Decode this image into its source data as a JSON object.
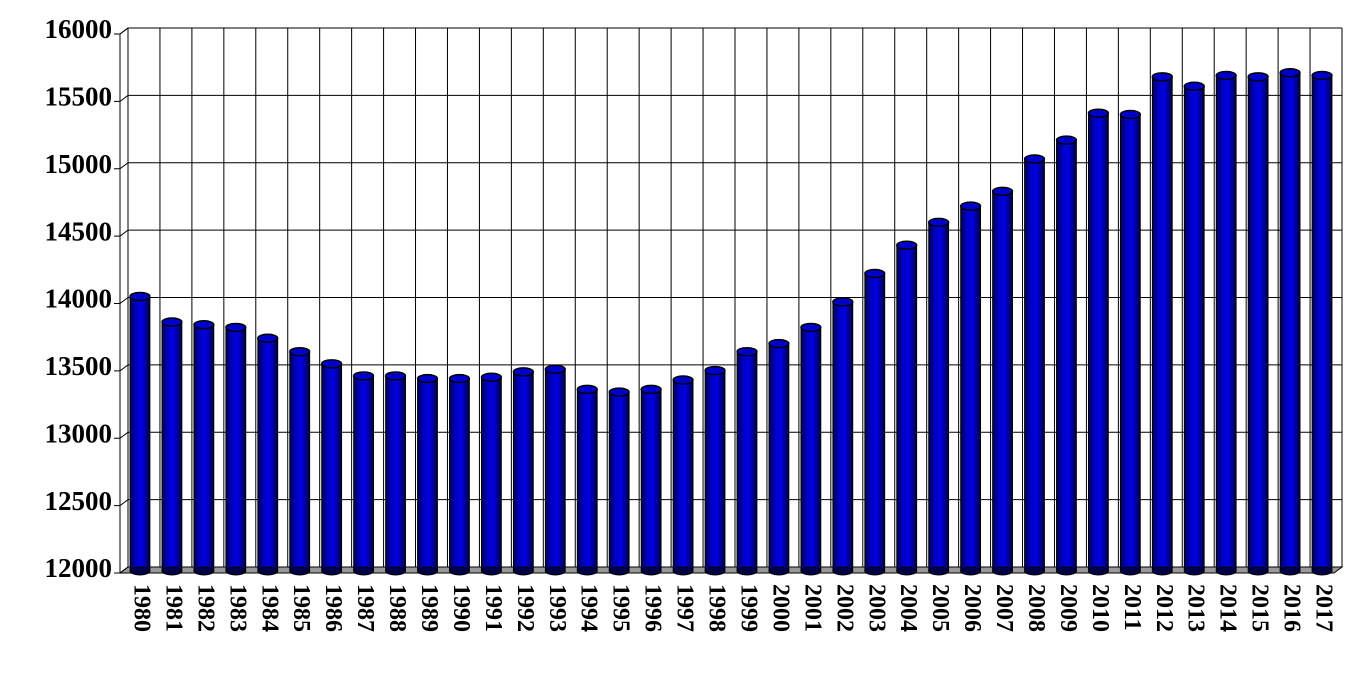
{
  "chart_data": {
    "type": "bar",
    "categories": [
      "1980",
      "1981",
      "1982",
      "1983",
      "1984",
      "1985",
      "1986",
      "1987",
      "1988",
      "1989",
      "1990",
      "1991",
      "1992",
      "1993",
      "1994",
      "1995",
      "1996",
      "1997",
      "1998",
      "1999",
      "2000",
      "2001",
      "2002",
      "2003",
      "2004",
      "2005",
      "2006",
      "2007",
      "2008",
      "2009",
      "2010",
      "2011",
      "2012",
      "2013",
      "2014",
      "2015",
      "2016",
      "2017"
    ],
    "values": [
      14030,
      13840,
      13820,
      13800,
      13720,
      13620,
      13530,
      13440,
      13440,
      13420,
      13420,
      13430,
      13470,
      13490,
      13340,
      13320,
      13340,
      13410,
      13480,
      13620,
      13680,
      13800,
      13990,
      14200,
      14410,
      14580,
      14700,
      14810,
      15050,
      15190,
      15390,
      15380,
      15660,
      15590,
      15670,
      15660,
      15690,
      15670
    ],
    "color": "#0000cc",
    "ylim": [
      12000,
      16000
    ],
    "yticks": [
      12000,
      12500,
      13000,
      13500,
      14000,
      14500,
      15000,
      15500,
      16000
    ],
    "grid": true
  }
}
